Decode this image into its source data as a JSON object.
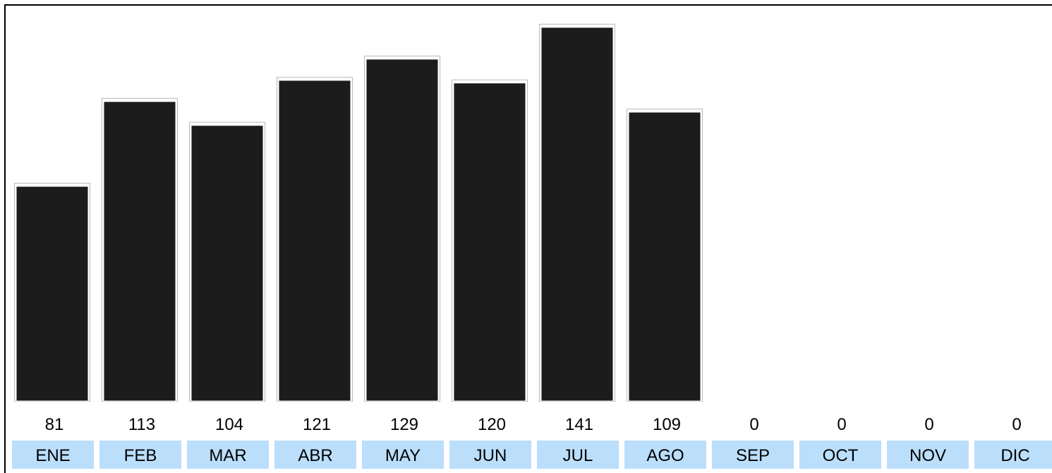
{
  "colors": {
    "bar": "#1c1c1c",
    "month_cell": "#bbdefb",
    "frame": "#000000",
    "background": "#ffffff"
  },
  "chart_data": {
    "type": "bar",
    "categories": [
      "ENE",
      "FEB",
      "MAR",
      "ABR",
      "MAY",
      "JUN",
      "JUL",
      "AGO",
      "SEP",
      "OCT",
      "NOV",
      "DIC"
    ],
    "values": [
      81,
      113,
      104,
      121,
      129,
      120,
      141,
      109,
      0,
      0,
      0,
      0
    ],
    "value_labels": [
      "81",
      "113",
      "104",
      "121",
      "129",
      "120",
      "141",
      "109",
      "0",
      "0",
      "0",
      "0"
    ],
    "title": "",
    "xlabel": "",
    "ylabel": "",
    "ylim": [
      0,
      146
    ],
    "grid": false,
    "legend": "none"
  }
}
